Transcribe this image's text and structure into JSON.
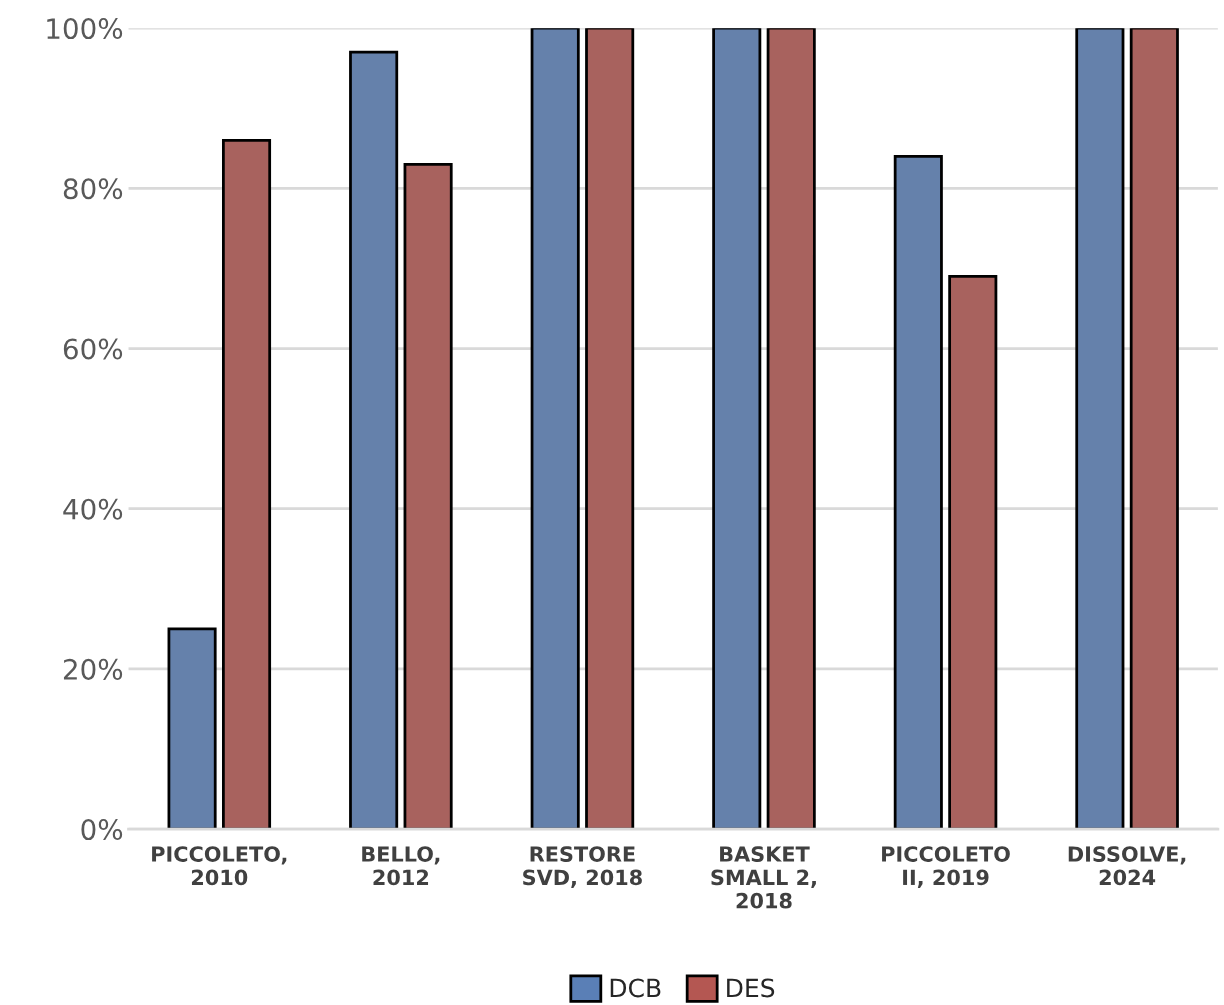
{
  "chart_data": {
    "type": "bar",
    "categories": [
      "PICCOLETO,\n2010",
      "BELLO,\n2012",
      "RESTORE\nSVD, 2018",
      "BASKET\nSMALL 2,\n2018",
      "PICCOLETO\nII, 2019",
      "DISSOLVE,\n2024"
    ],
    "series": [
      {
        "name": "DCB",
        "color": "#5a7fb6",
        "values": [
          25,
          97,
          100,
          100,
          84,
          100
        ]
      },
      {
        "name": "DES",
        "color": "#b45752",
        "values": [
          86,
          83,
          100,
          100,
          69,
          100
        ]
      }
    ],
    "ylim": [
      0,
      100
    ],
    "yticks": [
      {
        "value": 0,
        "label": "0%"
      },
      {
        "value": 20,
        "label": "20%"
      },
      {
        "value": 40,
        "label": "40%"
      },
      {
        "value": 60,
        "label": "60%"
      },
      {
        "value": 80,
        "label": "80%"
      },
      {
        "value": 100,
        "label": "100%"
      }
    ],
    "grid": "y",
    "legend": "bottom"
  }
}
